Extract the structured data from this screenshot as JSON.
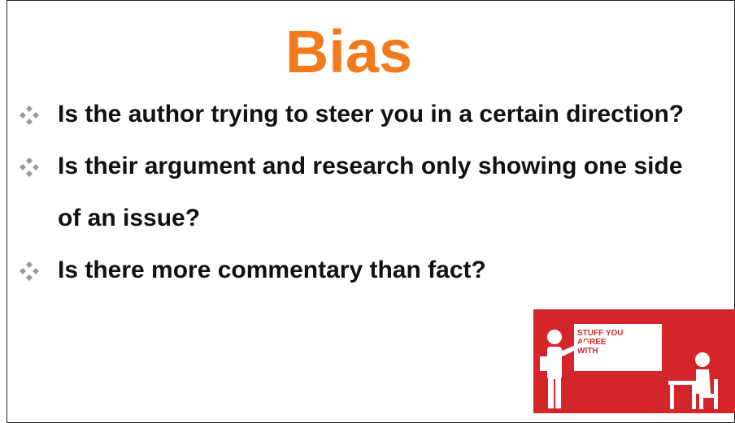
{
  "slide": {
    "title": "Bias",
    "bullets": [
      "Is the author trying to steer you in a certain direction?",
      "Is their argument and research only showing one side of an issue?",
      "Is there more commentary than fact?"
    ],
    "illustration": {
      "board_text": "STUFF YOU AGREE WITH"
    }
  }
}
